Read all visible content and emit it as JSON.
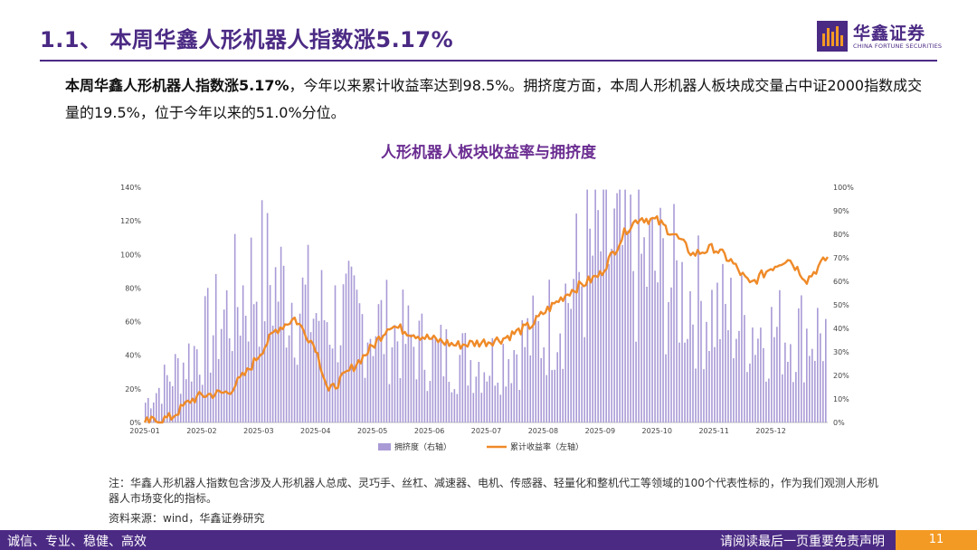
{
  "header": {
    "title": "1.1、  本周华鑫人形机器人指数涨5.17%",
    "logo_cn": "华鑫证券",
    "logo_en": "CHINA FORTUNE SECURITIES"
  },
  "summary": {
    "bold": "本周华鑫人形机器人指数涨5.17%",
    "rest": "，今年以来累计收益率达到98.5%。拥挤度方面，本周人形机器人板块成交量占中证2000指数成交量的19.5%，位于今年以来的51.0%分位。"
  },
  "chart_data": {
    "type": "bar+line",
    "title": "人形机器人板块收益率与拥挤度",
    "x_ticks": [
      "2025-01",
      "2025-02",
      "2025-03",
      "2025-04",
      "2025-05",
      "2025-06",
      "2025-07",
      "2025-08",
      "2025-09",
      "2025-10",
      "2025-11",
      "2025-12"
    ],
    "y_left": {
      "range": [
        0,
        140
      ],
      "ticks": [
        "0%",
        "20%",
        "40%",
        "60%",
        "80%",
        "100%",
        "120%",
        "140%"
      ]
    },
    "y_right": {
      "range": [
        0,
        100
      ],
      "ticks": [
        "0%",
        "10%",
        "20%",
        "30%",
        "40%",
        "50%",
        "60%",
        "70%",
        "80%",
        "90%",
        "100%"
      ]
    },
    "series": [
      {
        "name": "拥挤度（右轴）",
        "type": "bar",
        "axis": "right",
        "color": "#a99ad6",
        "approx_values_by_month_start": [
          10,
          40,
          75,
          55,
          50,
          35,
          30,
          45,
          90,
          75,
          55,
          45
        ]
      },
      {
        "name": "累计收益率（左轴）",
        "type": "line",
        "axis": "left",
        "color": "#ef8a28",
        "points": [
          [
            "2025-01",
            0
          ],
          [
            "2025-01-15",
            3
          ],
          [
            "2025-01-25",
            13
          ],
          [
            "2025-02",
            16
          ],
          [
            "2025-02-15",
            18
          ],
          [
            "2025-02-25",
            30
          ],
          [
            "2025-03",
            40
          ],
          [
            "2025-03-10",
            55
          ],
          [
            "2025-03-20",
            62
          ],
          [
            "2025-04",
            45
          ],
          [
            "2025-04-08",
            18
          ],
          [
            "2025-04-20",
            32
          ],
          [
            "2025-05",
            45
          ],
          [
            "2025-05-10",
            58
          ],
          [
            "2025-05-25",
            52
          ],
          [
            "2025-06",
            50
          ],
          [
            "2025-06-15",
            46
          ],
          [
            "2025-07",
            48
          ],
          [
            "2025-07-10",
            50
          ],
          [
            "2025-07-25",
            58
          ],
          [
            "2025-08",
            65
          ],
          [
            "2025-08-15",
            78
          ],
          [
            "2025-09",
            88
          ],
          [
            "2025-09-10",
            105
          ],
          [
            "2025-09-15",
            115
          ],
          [
            "2025-09-22",
            122
          ],
          [
            "2025-10",
            120
          ],
          [
            "2025-10-10",
            112
          ],
          [
            "2025-10-20",
            100
          ],
          [
            "2025-11",
            104
          ],
          [
            "2025-11-10",
            96
          ],
          [
            "2025-11-20",
            82
          ],
          [
            "2025-12",
            92
          ],
          [
            "2025-12-10",
            98
          ],
          [
            "2025-12-20",
            85
          ],
          [
            "2025-12-31",
            98.5
          ]
        ]
      }
    ],
    "legend": {
      "position": "bottom"
    }
  },
  "notes": {
    "note": "注：华鑫人形机器人指数包含涉及人形机器人总成、灵巧手、丝杠、减速器、电机、传感器、轻量化和整机代工等领域的100个代表性标的，作为我们观测人形机器人市场变化的指标。",
    "source": "资料来源：wind，华鑫证券研究"
  },
  "footer": {
    "left": "诚信、专业、稳健、高效",
    "right": "请阅读最后一页重要免责声明",
    "page": "11"
  }
}
